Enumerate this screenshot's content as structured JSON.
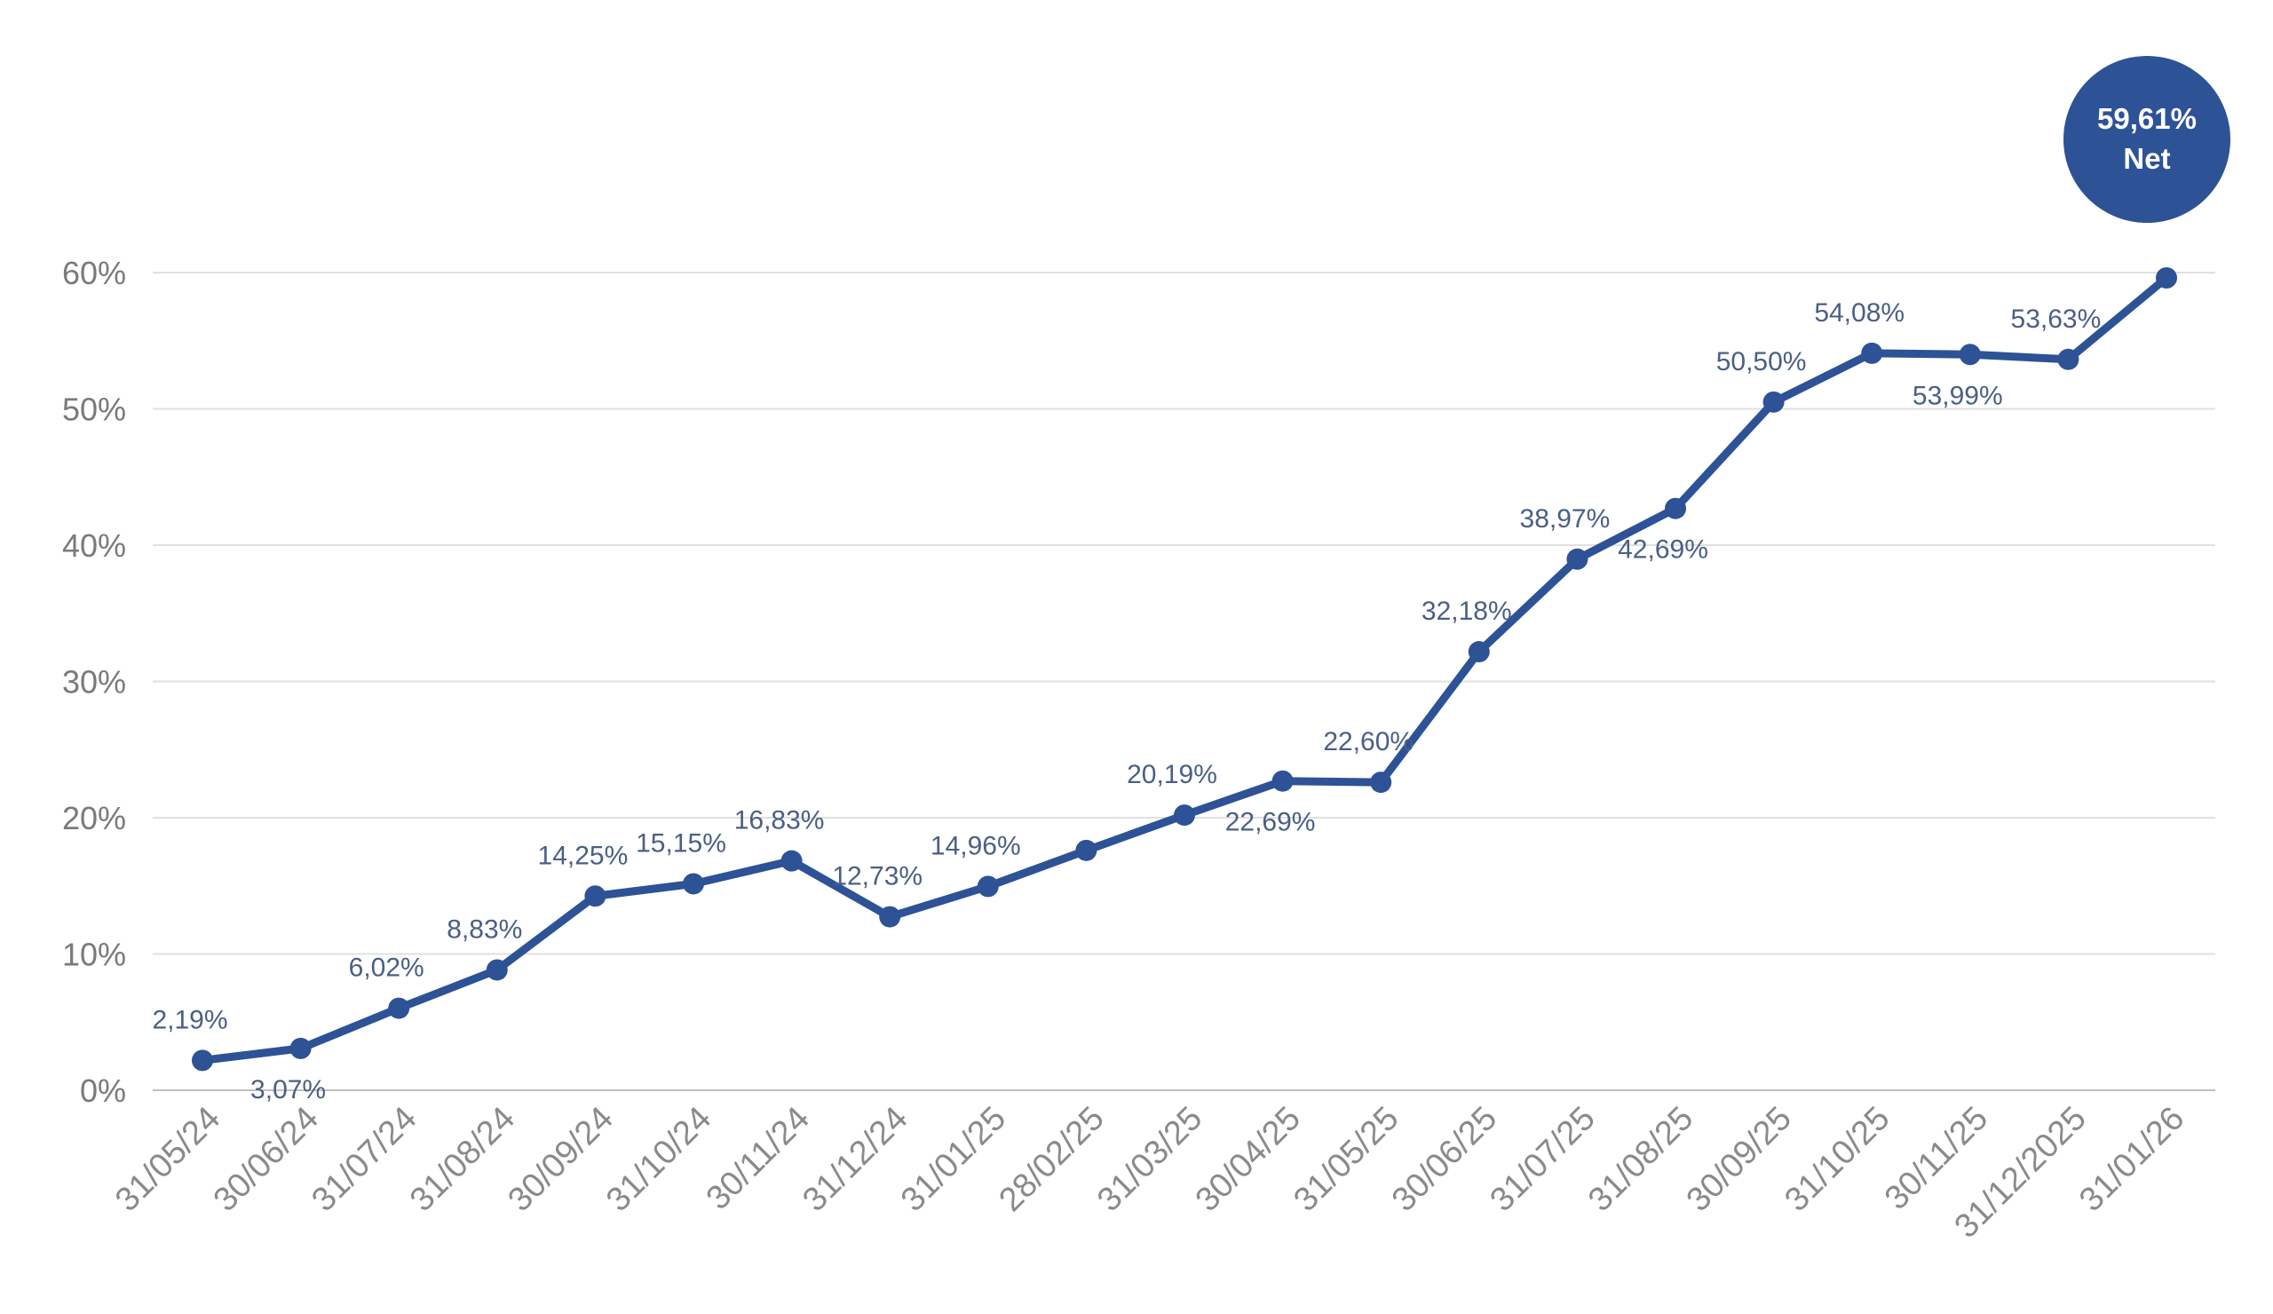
{
  "chart_data": {
    "type": "line",
    "title": "",
    "xlabel": "",
    "ylabel": "",
    "ylim": [
      0,
      60
    ],
    "yticks": [
      "0%",
      "10%",
      "20%",
      "30%",
      "40%",
      "50%",
      "60%"
    ],
    "grid": true,
    "categories": [
      "31/05/24",
      "30/06/24",
      "31/07/24",
      "31/08/24",
      "30/09/24",
      "31/10/24",
      "30/11/24",
      "31/12/24",
      "31/01/25",
      "28/02/25",
      "31/03/25",
      "30/04/25",
      "31/05/25",
      "30/06/25",
      "31/07/25",
      "31/08/25",
      "30/09/25",
      "31/10/25",
      "30/11/25",
      "31/12/2025",
      "31/01/26"
    ],
    "series": [
      {
        "values": [
          2.19,
          3.07,
          6.02,
          8.83,
          14.25,
          15.15,
          16.83,
          12.73,
          14.96,
          17.6,
          20.19,
          22.69,
          22.6,
          32.18,
          38.97,
          42.69,
          50.5,
          54.08,
          53.99,
          53.63,
          59.61
        ],
        "data_labels": [
          "2,19%",
          "3,07%",
          "6,02%",
          "8,83%",
          "14,25%",
          "15,15%",
          "16,83%",
          "12,73%",
          "14,96%",
          "",
          "20,19%",
          "22,69%",
          "22,60%",
          "32,18%",
          "38,97%",
          "42,69%",
          "50,50%",
          "54,08%",
          "53,99%",
          "53,63%",
          ""
        ],
        "label_side": [
          "above",
          "below",
          "above",
          "above",
          "above",
          "above",
          "above",
          "above",
          "above",
          "",
          "above",
          "below",
          "above",
          "above",
          "above",
          "below",
          "above",
          "above",
          "below",
          "above",
          ""
        ],
        "color": "#2d5296"
      }
    ],
    "colors": {
      "line": "#2d5296",
      "grid": "#e0e0e0",
      "axis": "#c0c0c0",
      "label": "#4a5f85",
      "tick": "#8a8a8a"
    },
    "badge": {
      "line1": "59,61%",
      "line2": "Net"
    }
  }
}
